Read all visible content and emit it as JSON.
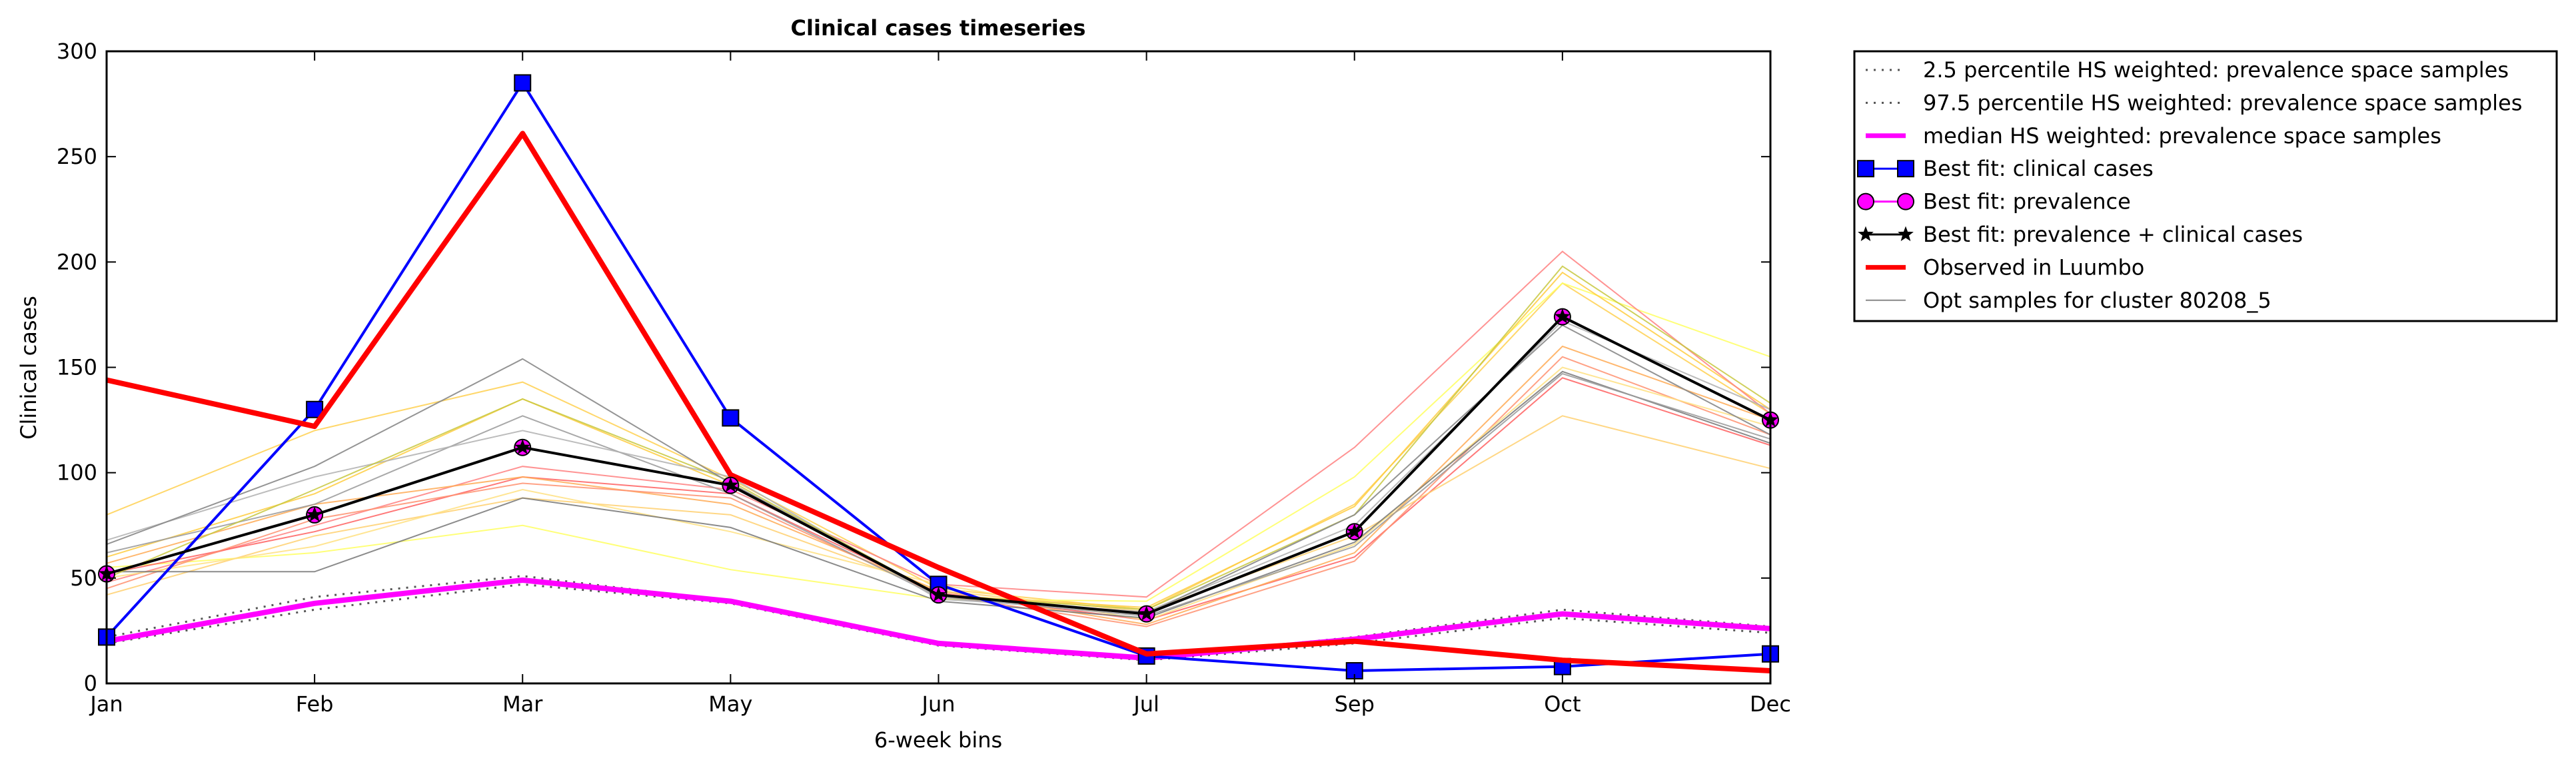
{
  "chart_data": {
    "type": "line",
    "title": "Clinical cases timeseries",
    "xlabel": "6-week bins",
    "ylabel": "Clinical cases",
    "ylim": [
      0,
      300
    ],
    "yticks": [
      "0",
      "50",
      "100",
      "150",
      "200",
      "250",
      "300"
    ],
    "categories": [
      "Jan",
      "Feb",
      "Mar",
      "May",
      "Jun",
      "Jul",
      "Sep",
      "Oct",
      "Dec"
    ],
    "grid": false,
    "legend_position": "outside-top-right",
    "series": [
      {
        "name": "2.5 percentile HS weighted: prevalence space samples",
        "color": "#555555",
        "style": "dotted",
        "values": [
          19,
          35,
          47,
          38,
          18,
          11,
          19,
          31,
          24
        ]
      },
      {
        "name": "97.5 percentile HS weighted: prevalence space samples",
        "color": "#555555",
        "style": "dotted",
        "values": [
          22,
          41,
          51,
          39,
          19,
          12,
          22,
          35,
          27
        ]
      },
      {
        "name": "median HS weighted: prevalence space samples",
        "color": "#ff00ff",
        "style": "solid-thick",
        "values": [
          20,
          38,
          49,
          39,
          19,
          12,
          21,
          33,
          26
        ]
      },
      {
        "name": "Best fit: clinical cases",
        "color": "#0000ff",
        "marker": "square",
        "values": [
          22,
          130,
          285,
          126,
          47,
          13,
          6,
          8,
          14
        ]
      },
      {
        "name": "Best fit: prevalence",
        "color": "#ff00ff",
        "marker": "circle",
        "values": [
          52,
          80,
          112,
          94,
          42,
          33,
          72,
          174,
          125
        ]
      },
      {
        "name": "Best fit: prevalence + clinical cases",
        "color": "#000000",
        "marker": "star",
        "values": [
          52,
          80,
          112,
          94,
          42,
          33,
          72,
          174,
          125
        ]
      },
      {
        "name": "Observed in Luumbo",
        "color": "#ff0000",
        "style": "solid-thick",
        "values": [
          144,
          122,
          261,
          99,
          55,
          14,
          20,
          11,
          6
        ]
      },
      {
        "name": "Opt samples for cluster 80208_5",
        "color": "#888888",
        "style": "thin",
        "values": [
          66,
          103,
          154,
          95,
          42,
          33,
          80,
          170,
          118
        ]
      }
    ],
    "samples": [
      {
        "color": "#ffd050",
        "values": [
          80,
          120,
          143,
          97,
          45,
          35,
          85,
          190,
          128
        ]
      },
      {
        "color": "#ffff60",
        "values": [
          55,
          62,
          75,
          54,
          40,
          39,
          98,
          190,
          155
        ]
      },
      {
        "color": "#ffcc40",
        "values": [
          60,
          90,
          135,
          94,
          42,
          36,
          84,
          195,
          130
        ]
      },
      {
        "color": "#ff8080",
        "values": [
          48,
          75,
          103,
          92,
          47,
          41,
          112,
          205,
          128
        ]
      },
      {
        "color": "#ff6060",
        "values": [
          52,
          72,
          98,
          90,
          43,
          30,
          60,
          145,
          113
        ]
      },
      {
        "color": "#ffaa55",
        "values": [
          57,
          85,
          98,
          85,
          44,
          28,
          62,
          160,
          125
        ]
      },
      {
        "color": "#ff9070",
        "values": [
          45,
          78,
          95,
          88,
          42,
          27,
          58,
          155,
          118
        ]
      },
      {
        "color": "#ffd070",
        "values": [
          42,
          70,
          88,
          80,
          44,
          34,
          70,
          127,
          102
        ]
      },
      {
        "color": "#ffe080",
        "values": [
          50,
          65,
          92,
          72,
          47,
          30,
          66,
          150,
          122
        ]
      },
      {
        "color": "#777777",
        "values": [
          53,
          53,
          88,
          74,
          39,
          31,
          67,
          148,
          114
        ]
      },
      {
        "color": "#999999",
        "values": [
          62,
          85,
          127,
          90,
          41,
          32,
          65,
          147,
          116
        ]
      },
      {
        "color": "#b0b0b0",
        "values": [
          68,
          98,
          120,
          98,
          40,
          34,
          75,
          172,
          130
        ]
      },
      {
        "color": "#c8c840",
        "values": [
          50,
          92,
          135,
          96,
          42,
          35,
          80,
          198,
          133
        ]
      }
    ]
  }
}
